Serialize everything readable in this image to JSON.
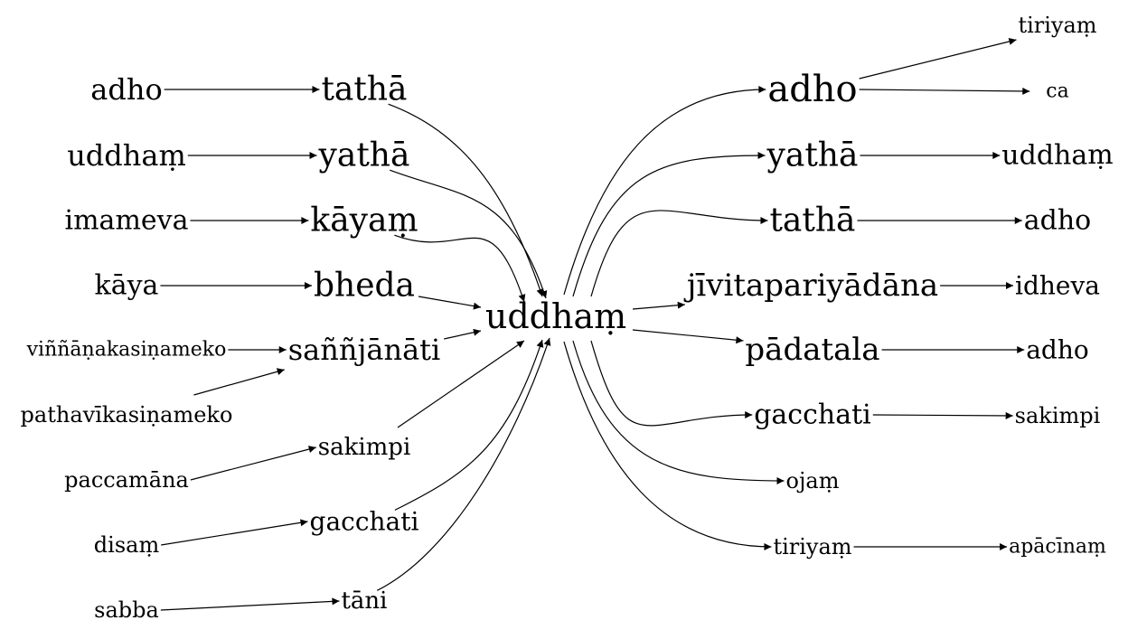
{
  "center": {
    "id": "center",
    "label": "uddhaṃ"
  },
  "left_mid": [
    {
      "id": "lm-tatha",
      "label": "tathā"
    },
    {
      "id": "lm-yatha",
      "label": "yathā"
    },
    {
      "id": "lm-kayam",
      "label": "kāyaṃ"
    },
    {
      "id": "lm-bheda",
      "label": "bheda"
    },
    {
      "id": "lm-sanjanati",
      "label": "saññjānāti"
    },
    {
      "id": "lm-sakimpi",
      "label": "sakimpi"
    },
    {
      "id": "lm-gacchati",
      "label": "gacchati"
    },
    {
      "id": "lm-tani",
      "label": "tāni"
    }
  ],
  "left_outer": [
    {
      "id": "lo-adho",
      "label": "adho",
      "target": "lm-tatha"
    },
    {
      "id": "lo-uddham",
      "label": "uddhaṃ",
      "target": "lm-yatha"
    },
    {
      "id": "lo-imameva",
      "label": "imameva",
      "target": "lm-kayam"
    },
    {
      "id": "lo-kaya",
      "label": "kāya",
      "target": "lm-bheda"
    },
    {
      "id": "lo-vinnana",
      "label": "viññāṇakasiṇameko",
      "target": "lm-sanjanati"
    },
    {
      "id": "lo-pathavi",
      "label": "pathavīkasiṇameko",
      "target": "lm-sanjanati"
    },
    {
      "id": "lo-paccamana",
      "label": "paccamāna",
      "target": "lm-sakimpi"
    },
    {
      "id": "lo-disam",
      "label": "disaṃ",
      "target": "lm-gacchati"
    },
    {
      "id": "lo-sabba",
      "label": "sabba",
      "target": "lm-tani"
    }
  ],
  "right_mid": [
    {
      "id": "rm-adho",
      "label": "adho"
    },
    {
      "id": "rm-yatha",
      "label": "yathā"
    },
    {
      "id": "rm-tatha",
      "label": "tathā"
    },
    {
      "id": "rm-jivita",
      "label": "jīvitapariyādāna"
    },
    {
      "id": "rm-padatala",
      "label": "pādatala"
    },
    {
      "id": "rm-gacchati",
      "label": "gacchati"
    },
    {
      "id": "rm-ojam",
      "label": "ojaṃ"
    },
    {
      "id": "rm-tiriyam",
      "label": "tiriyaṃ"
    }
  ],
  "right_outer": [
    {
      "id": "ro-tiriyam",
      "label": "tiriyaṃ",
      "source": "rm-adho"
    },
    {
      "id": "ro-ca",
      "label": "ca",
      "source": "rm-adho"
    },
    {
      "id": "ro-uddham",
      "label": "uddhaṃ",
      "source": "rm-yatha"
    },
    {
      "id": "ro-adho1",
      "label": "adho",
      "source": "rm-tatha"
    },
    {
      "id": "ro-idheva",
      "label": "idheva",
      "source": "rm-jivita"
    },
    {
      "id": "ro-adho2",
      "label": "adho",
      "source": "rm-padatala"
    },
    {
      "id": "ro-sakimpi",
      "label": "sakimpi",
      "source": "rm-gacchati"
    },
    {
      "id": "ro-apacinam",
      "label": "apācīnaṃ",
      "source": "rm-tiriyam"
    }
  ]
}
